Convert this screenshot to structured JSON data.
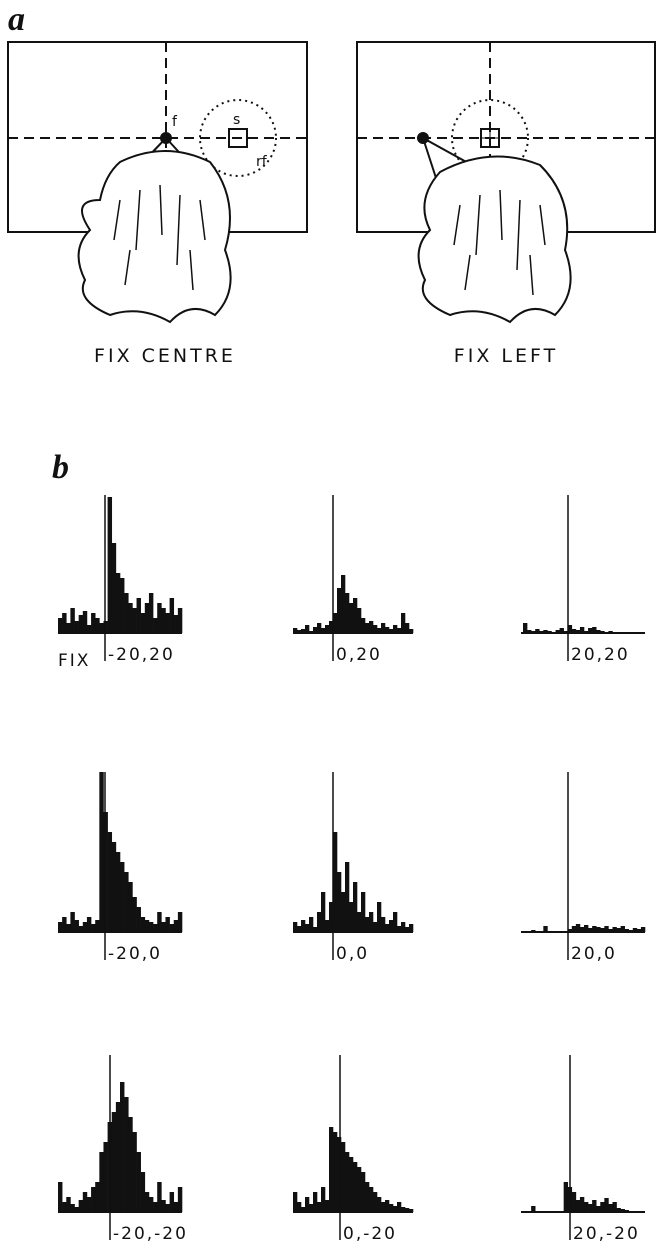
{
  "panel_a": {
    "letter": "a",
    "left": {
      "caption": "FIX CENTRE",
      "f": "f",
      "s": "s",
      "rf": "rf"
    },
    "right": {
      "caption": "FIX LEFT"
    }
  },
  "panel_b": {
    "letter": "b",
    "fix_label": "FIX",
    "panels": [
      {
        "label": "-20,20",
        "values": [
          15,
          20,
          10,
          25,
          12,
          18,
          22,
          8,
          20,
          15,
          10,
          12,
          136,
          90,
          60,
          55,
          40,
          30,
          25,
          35,
          20,
          30,
          40,
          15,
          30,
          25,
          20,
          35,
          18,
          25
        ]
      },
      {
        "label": "0,20",
        "values": [
          5,
          3,
          4,
          8,
          2,
          6,
          10,
          5,
          8,
          12,
          20,
          45,
          58,
          40,
          30,
          35,
          25,
          15,
          10,
          12,
          8,
          5,
          10,
          6,
          4,
          8,
          5,
          20,
          10,
          4
        ]
      },
      {
        "label": "20,20",
        "values": [
          10,
          3,
          2,
          4,
          2,
          3,
          2,
          1,
          3,
          5,
          2,
          8,
          4,
          3,
          6,
          2,
          5,
          6,
          3,
          2,
          1,
          2,
          1,
          0,
          1,
          0,
          0,
          0,
          0,
          0
        ]
      },
      {
        "label": "-20,0",
        "values": [
          10,
          15,
          8,
          20,
          12,
          6,
          10,
          15,
          8,
          12,
          160,
          120,
          100,
          90,
          80,
          70,
          60,
          50,
          35,
          25,
          15,
          12,
          10,
          8,
          20,
          10,
          15,
          8,
          12,
          20
        ]
      },
      {
        "label": "0,0",
        "values": [
          10,
          6,
          12,
          8,
          15,
          5,
          20,
          40,
          12,
          30,
          100,
          60,
          40,
          70,
          30,
          50,
          20,
          40,
          15,
          20,
          10,
          30,
          15,
          8,
          12,
          20,
          6,
          10,
          5,
          8
        ]
      },
      {
        "label": "20,0",
        "values": [
          0,
          0,
          2,
          0,
          0,
          6,
          0,
          0,
          0,
          0,
          0,
          3,
          6,
          8,
          5,
          7,
          4,
          6,
          5,
          4,
          6,
          3,
          5,
          4,
          6,
          3,
          2,
          4,
          3,
          5
        ]
      },
      {
        "label": "-20,-20",
        "values": [
          30,
          10,
          15,
          8,
          5,
          12,
          20,
          15,
          25,
          30,
          60,
          70,
          90,
          100,
          110,
          130,
          115,
          95,
          80,
          60,
          40,
          20,
          15,
          10,
          30,
          12,
          8,
          20,
          10,
          25
        ]
      },
      {
        "label": "0,-20",
        "values": [
          20,
          10,
          5,
          15,
          8,
          20,
          10,
          25,
          12,
          85,
          80,
          75,
          70,
          60,
          55,
          50,
          45,
          40,
          30,
          25,
          20,
          15,
          10,
          12,
          8,
          6,
          10,
          5,
          4,
          3
        ]
      },
      {
        "label": "20,-20",
        "values": [
          0,
          0,
          6,
          0,
          0,
          0,
          0,
          0,
          0,
          0,
          30,
          25,
          20,
          12,
          15,
          10,
          8,
          12,
          6,
          10,
          14,
          8,
          10,
          4,
          3,
          2,
          0,
          0,
          0,
          0
        ]
      }
    ]
  }
}
